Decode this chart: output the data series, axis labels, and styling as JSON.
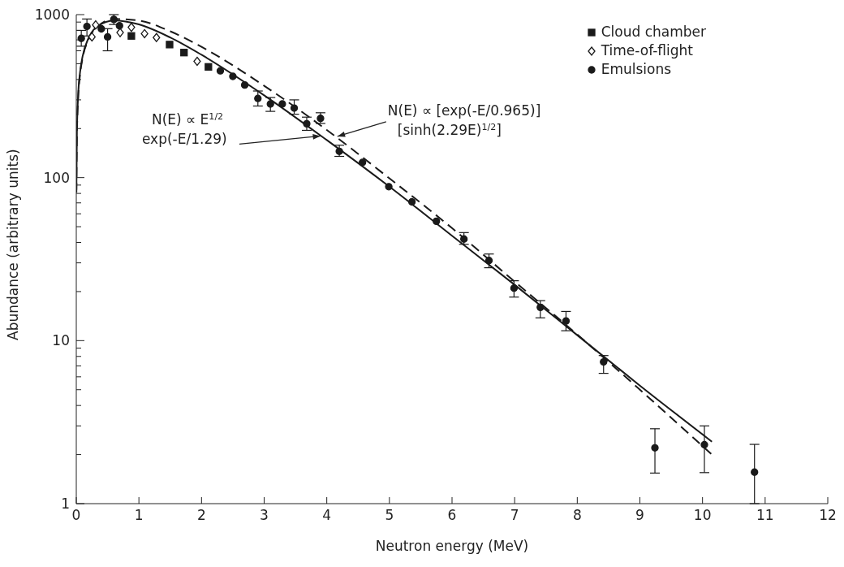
{
  "chart_data": {
    "type": "scatter",
    "xlabel": "Neutron energy (MeV)",
    "ylabel": "Abundance (arbitrary units)",
    "xlim": [
      0,
      12
    ],
    "xticks": [
      0,
      1,
      2,
      3,
      4,
      5,
      6,
      7,
      8,
      9,
      10,
      11,
      12
    ],
    "ylim": [
      1,
      1000
    ],
    "log": "y",
    "yticks": [
      1,
      {
        "value": 2,
        "label": null
      },
      {
        "value": 3,
        "label": null
      },
      {
        "value": 4,
        "label": null
      },
      {
        "value": 5,
        "label": null
      },
      {
        "value": 6,
        "label": null
      },
      {
        "value": 7,
        "label": null
      },
      {
        "value": 8,
        "label": null
      },
      {
        "value": 9,
        "label": null
      },
      10,
      {
        "value": 20,
        "label": null
      },
      {
        "value": 30,
        "label": null
      },
      {
        "value": 40,
        "label": null
      },
      {
        "value": 50,
        "label": null
      },
      {
        "value": 60,
        "label": null
      },
      {
        "value": 70,
        "label": null
      },
      {
        "value": 80,
        "label": null
      },
      {
        "value": 90,
        "label": null
      },
      100,
      {
        "value": 200,
        "label": null
      },
      {
        "value": 300,
        "label": null
      },
      {
        "value": 400,
        "label": null
      },
      {
        "value": 500,
        "label": null
      },
      {
        "value": 600,
        "label": null
      },
      {
        "value": 700,
        "label": null
      },
      {
        "value": 800,
        "label": null
      },
      {
        "value": 900,
        "label": null
      },
      1000
    ],
    "grid": false,
    "legend": "top right",
    "series": [
      {
        "name": "Cloud chamber",
        "color": "#1a1a1a",
        "marker": "square",
        "x": [
          0.88,
          1.49,
          1.72,
          2.11
        ],
        "values": [
          740,
          655,
          585,
          478
        ]
      },
      {
        "name": "Time-of-flight",
        "color": "#1a1a1a",
        "marker": "diamond",
        "x": [
          0.25,
          0.31,
          0.7,
          0.88,
          1.09,
          1.28,
          1.93
        ],
        "values": [
          730,
          865,
          776,
          836,
          764,
          723,
          517
        ]
      },
      {
        "name": "Emulsions",
        "color": "#1a1a1a",
        "marker": "circle",
        "x": [
          0.08,
          0.17,
          0.4,
          0.5,
          0.6,
          0.69,
          2.3,
          2.5,
          2.69,
          2.9,
          3.1,
          3.29,
          3.48,
          3.68,
          3.9,
          4.2,
          4.57,
          4.99,
          5.36,
          5.75,
          6.19,
          6.59,
          6.99,
          7.41,
          7.82,
          8.42,
          9.24,
          10.03,
          10.83
        ],
        "values": [
          715,
          846,
          818,
          730,
          935,
          855,
          452,
          418,
          370,
          306,
          283,
          283,
          267,
          214,
          231,
          145,
          124,
          88,
          71,
          54,
          42,
          31,
          21,
          16,
          13.2,
          7.4,
          2.2,
          2.3,
          1.56
        ],
        "errors": [
          [
            640,
            800
          ],
          [
            740,
            940
          ],
          null,
          [
            600,
            820
          ],
          [
            870,
            1000
          ],
          null,
          null,
          null,
          null,
          [
            275,
            340
          ],
          [
            255,
            310
          ],
          null,
          [
            245,
            300
          ],
          [
            195,
            235
          ],
          [
            215,
            250
          ],
          [
            135,
            158
          ],
          null,
          null,
          null,
          null,
          [
            39,
            46
          ],
          [
            28,
            34
          ],
          [
            18.5,
            23.3
          ],
          [
            13.8,
            17.6
          ],
          [
            11.5,
            15.1
          ],
          [
            6.3,
            8.1
          ],
          [
            1.54,
            2.88
          ],
          [
            1.55,
            3.0
          ],
          [
            1,
            2.31
          ]
        ]
      },
      {
        "type": "line",
        "color": "#1a1a1a",
        "line_style": "solid",
        "marker": "none",
        "x": [
          0.002,
          0.01,
          0.03,
          0.06,
          0.1,
          0.2,
          0.35,
          0.6,
          1,
          1.5,
          2,
          3,
          4,
          5,
          6,
          7,
          8,
          9,
          10.15
        ],
        "values": [
          84,
          188,
          320,
          442,
          553,
          724,
          852,
          920,
          871,
          724,
          567,
          320,
          170,
          88,
          44,
          22,
          10.8,
          5.3,
          2.4
        ]
      },
      {
        "type": "line",
        "color": "#1a1a1a",
        "line_style": "dashed",
        "marker": "none",
        "x": [
          0.002,
          0.01,
          0.03,
          0.06,
          0.1,
          0.2,
          0.35,
          0.6,
          1,
          1.5,
          2,
          3,
          4,
          5,
          6,
          7,
          8,
          9,
          10.15
        ],
        "values": [
          81,
          180,
          308,
          428,
          538,
          711,
          852,
          941,
          920,
          790,
          634,
          366,
          196,
          99,
          49,
          23,
          10.9,
          5.0,
          2.0
        ]
      }
    ],
    "annotations": [
      {
        "text": "N(E) ∝ E$^{1/2}$\nexp(-E/1.29)",
        "x": 3.9,
        "y": 180
      },
      {
        "text": "N(E) ∝ [exp(-E/0.965)]\n[sinh(2.29E)$^{1/2}$]",
        "x": 4.17,
        "y": 179
      }
    ]
  }
}
